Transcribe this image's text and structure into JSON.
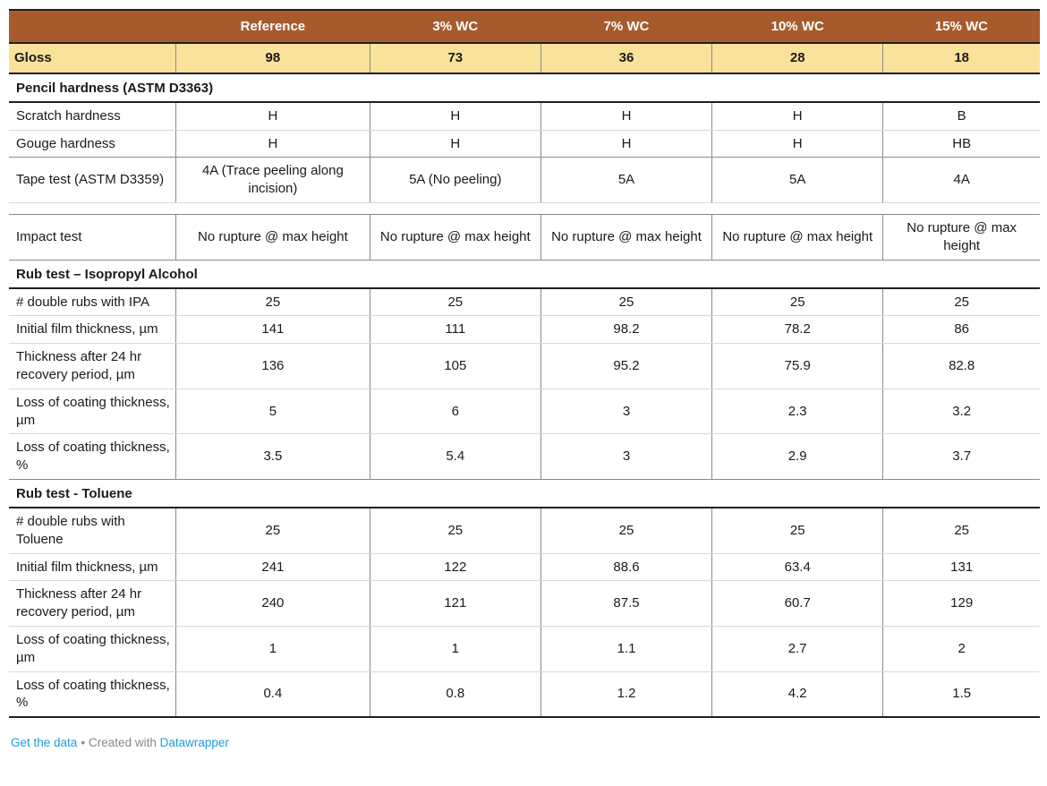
{
  "chart_data": {
    "type": "table",
    "columns": [
      "",
      "Reference",
      "3% WC",
      "7% WC",
      "10% WC",
      "15% WC"
    ],
    "highlight_row": {
      "label": "Gloss",
      "values": [
        "98",
        "73",
        "36",
        "28",
        "18"
      ]
    },
    "rows": [
      {
        "type": "section",
        "label": "Pencil hardness (ASTM D3363)"
      },
      {
        "type": "row",
        "label": "Scratch hardness",
        "values": [
          "H",
          "H",
          "H",
          "H",
          "B"
        ]
      },
      {
        "type": "row",
        "sep": "medium",
        "label": "Gouge hardness",
        "values": [
          "H",
          "H",
          "H",
          "H",
          "HB"
        ]
      },
      {
        "type": "row",
        "label": "Tape test (ASTM D3359)",
        "values": [
          "4A (Trace peeling along incision)",
          "5A (No peeling)",
          "5A",
          "5A",
          "4A"
        ]
      },
      {
        "type": "spacer"
      },
      {
        "type": "row",
        "sep": "medium",
        "label": "Impact test",
        "values": [
          "No rupture @ max height",
          "No rupture @ max height",
          "No rupture @ max height",
          "No rupture @ max height",
          "No rupture @ max height"
        ]
      },
      {
        "type": "section",
        "label": "Rub test – Isopropyl Alcohol"
      },
      {
        "type": "row",
        "label": "# double rubs with IPA",
        "values": [
          "25",
          "25",
          "25",
          "25",
          "25"
        ]
      },
      {
        "type": "row",
        "label": "Initial film thickness, µm",
        "values": [
          "141",
          "111",
          "98.2",
          "78.2",
          "86"
        ]
      },
      {
        "type": "row",
        "label": "Thickness after 24 hr recovery period, µm",
        "values": [
          "136",
          "105",
          "95.2",
          "75.9",
          "82.8"
        ]
      },
      {
        "type": "row",
        "label": "Loss of coating thickness, µm",
        "values": [
          "5",
          "6",
          "3",
          "2.3",
          "3.2"
        ]
      },
      {
        "type": "row",
        "sep": "medium",
        "label": "Loss of coating thickness, %",
        "values": [
          "3.5",
          "5.4",
          "3",
          "2.9",
          "3.7"
        ]
      },
      {
        "type": "section",
        "label": "Rub test - Toluene"
      },
      {
        "type": "row",
        "label": "# double rubs with Toluene",
        "values": [
          "25",
          "25",
          "25",
          "25",
          "25"
        ]
      },
      {
        "type": "row",
        "label": "Initial film thickness, µm",
        "values": [
          "241",
          "122",
          "88.6",
          "63.4",
          "131"
        ]
      },
      {
        "type": "row",
        "label": "Thickness after 24 hr recovery period, µm",
        "values": [
          "240",
          "121",
          "87.5",
          "60.7",
          "129"
        ]
      },
      {
        "type": "row",
        "label": "Loss of coating thickness, µm",
        "values": [
          "1",
          "1",
          "1.1",
          "2.7",
          "2"
        ]
      },
      {
        "type": "row",
        "sep": "end",
        "label": "Loss of coating thickness, %",
        "values": [
          "0.4",
          "0.8",
          "1.2",
          "4.2",
          "1.5"
        ]
      }
    ]
  },
  "footer": {
    "get_data_label": "Get the data",
    "dot": "•",
    "created_with": "Created with",
    "tool_name": "Datawrapper"
  },
  "colors": {
    "header_bg": "#A75B2D",
    "highlight_bg": "#FBE29B",
    "link": "#1E9CD8",
    "heavy_border": "#1F1F1F",
    "medium_border": "#8A8A8A",
    "light_border": "#D9D9D9"
  }
}
